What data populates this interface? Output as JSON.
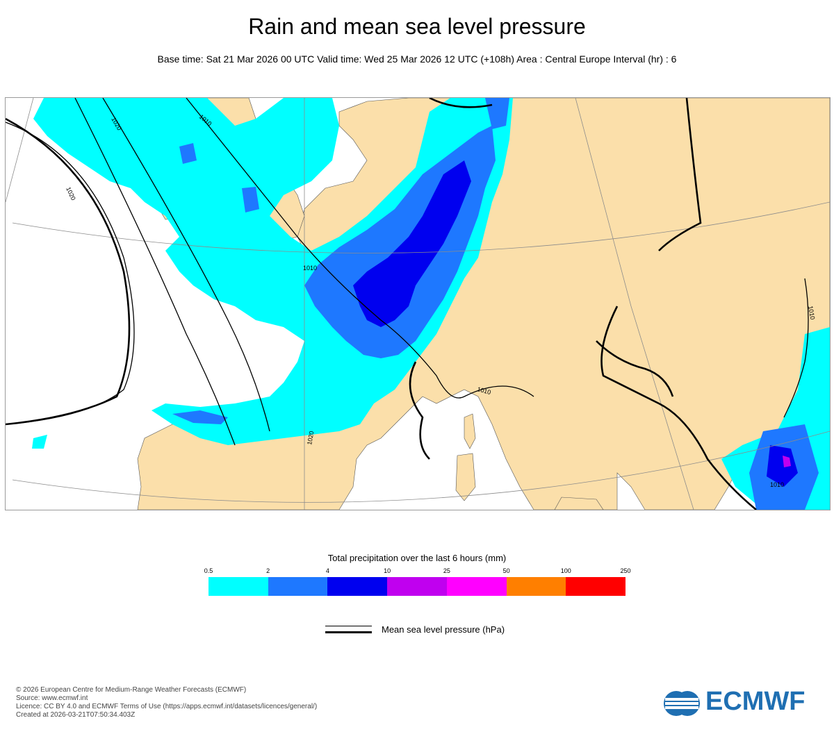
{
  "header": {
    "title": "Rain and mean sea level pressure",
    "subtitle": "Base time: Sat 21 Mar 2026 00 UTC Valid time: Wed 25 Mar 2026 12 UTC (+108h) Area : Central Europe Interval (hr) : 6"
  },
  "map": {
    "isobar_labels": [
      "1020",
      "1010",
      "1020",
      "1010",
      "1010",
      "1020",
      "1010",
      "1010"
    ],
    "colors": {
      "land": "#fbdfaa",
      "sea": "#ffffff",
      "isobar": "#000000",
      "graticule": "#8b8b8b"
    }
  },
  "legend": {
    "title": "Total precipitation over the last 6 hours (mm)",
    "ticks": [
      "0.5",
      "2",
      "4",
      "10",
      "25",
      "50",
      "100",
      "250"
    ],
    "colors": [
      "#00ffff",
      "#1e78ff",
      "#0000ef",
      "#c000ef",
      "#ff00ff",
      "#ff7f00",
      "#ff0000"
    ],
    "msl_label": "Mean sea level pressure (hPa)"
  },
  "credits": [
    "© 2026 European Centre for Medium-Range Weather Forecasts (ECMWF)",
    "Source: www.ecmwf.int",
    "Licence: CC BY 4.0 and ECMWF Terms of Use (https://apps.ecmwf.int/datasets/licences/general/)",
    "Created at 2026-03-21T07:50:34.403Z"
  ],
  "logo": {
    "text": "ECMWF",
    "color": "#1f6fb2"
  }
}
